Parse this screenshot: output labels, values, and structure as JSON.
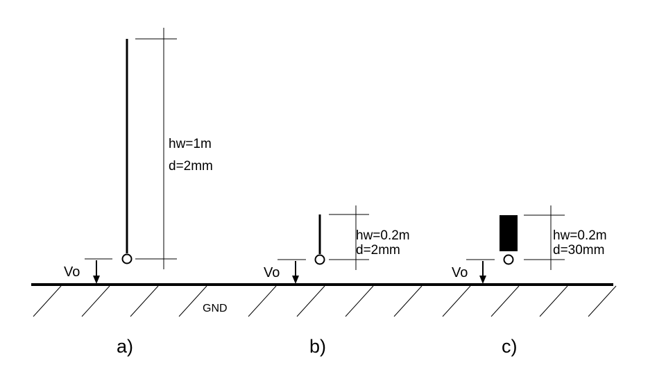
{
  "ground_label": "GND",
  "colors": {
    "ink": "#000000",
    "background": "#ffffff"
  },
  "panels": [
    {
      "id": "a",
      "caption": "a)",
      "voltage_label": "Vo",
      "height_label": "hw=1m",
      "diameter_label": "d=2mm"
    },
    {
      "id": "b",
      "caption": "b)",
      "voltage_label": "Vo",
      "height_label": "hw=0.2m",
      "diameter_label": "d=2mm"
    },
    {
      "id": "c",
      "caption": "c)",
      "voltage_label": "Vo",
      "height_label": "hw=0.2m",
      "diameter_label": "d=30mm"
    }
  ]
}
